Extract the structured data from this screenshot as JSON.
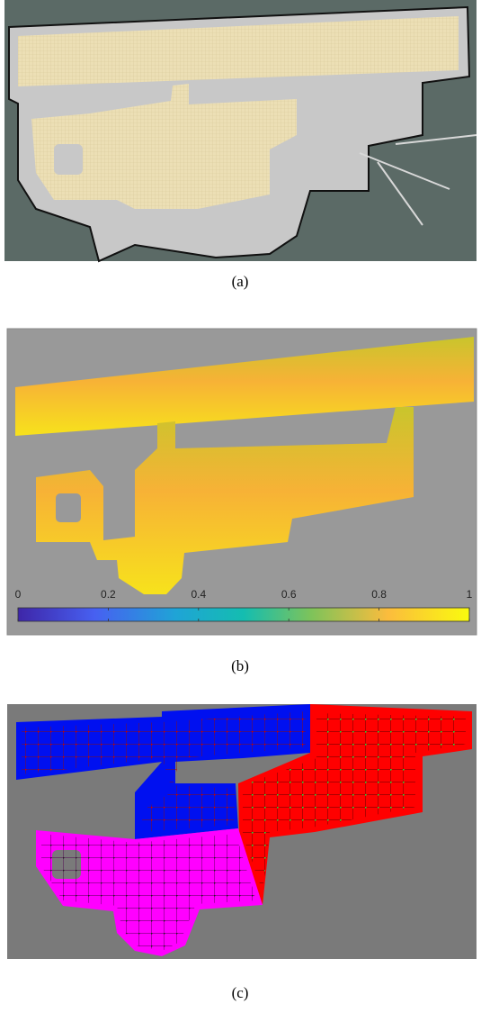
{
  "panels": [
    {
      "caption": "(a)"
    },
    {
      "caption": "(b)",
      "colorbar": {
        "lim": [
          0,
          1
        ],
        "ticks": [
          0,
          0.2,
          0.4,
          0.6,
          0.8,
          1
        ]
      }
    },
    {
      "caption": "(c)"
    }
  ]
}
